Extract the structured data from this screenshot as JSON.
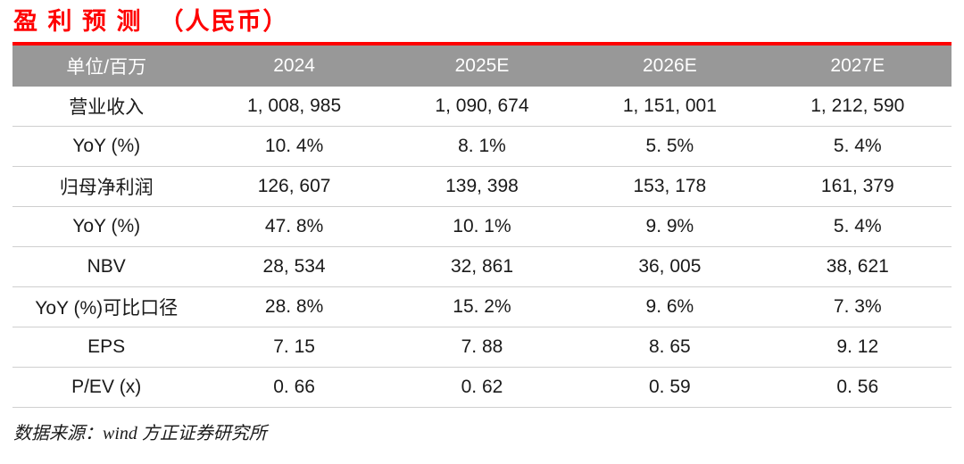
{
  "title": "盈 利 预 测  （人民币）",
  "table": {
    "headers": [
      "单位/百万",
      "2024",
      "2025E",
      "2026E",
      "2027E"
    ],
    "rows": [
      {
        "label": "营业收入",
        "values": [
          "1, 008, 985",
          "1, 090, 674",
          "1, 151, 001",
          "1, 212, 590"
        ]
      },
      {
        "label": "YoY (%)",
        "values": [
          "10. 4%",
          "8. 1%",
          "5. 5%",
          "5. 4%"
        ]
      },
      {
        "label": "归母净利润",
        "values": [
          "126, 607",
          "139, 398",
          "153, 178",
          "161, 379"
        ]
      },
      {
        "label": "YoY (%)",
        "values": [
          "47. 8%",
          "10. 1%",
          "9. 9%",
          "5. 4%"
        ]
      },
      {
        "label": "NBV",
        "values": [
          "28, 534",
          "32, 861",
          "36, 005",
          "38, 621"
        ]
      },
      {
        "label": "YoY (%)可比口径",
        "values": [
          "28. 8%",
          "15. 2%",
          "9. 6%",
          "7. 3%"
        ]
      },
      {
        "label": "EPS",
        "values": [
          "7. 15",
          "7. 88",
          "8. 65",
          "9. 12"
        ]
      },
      {
        "label": "P/EV (x)",
        "values": [
          "0. 66",
          "0. 62",
          "0. 59",
          "0. 56"
        ]
      }
    ]
  },
  "footer": {
    "source": "数据来源：wind 方正证券研究所"
  },
  "colors": {
    "accent_red": "#ff0000",
    "header_bg": "#989898",
    "header_text": "#ffffff",
    "row_border": "#cfcfcf",
    "body_text": "#1a1a1a"
  }
}
